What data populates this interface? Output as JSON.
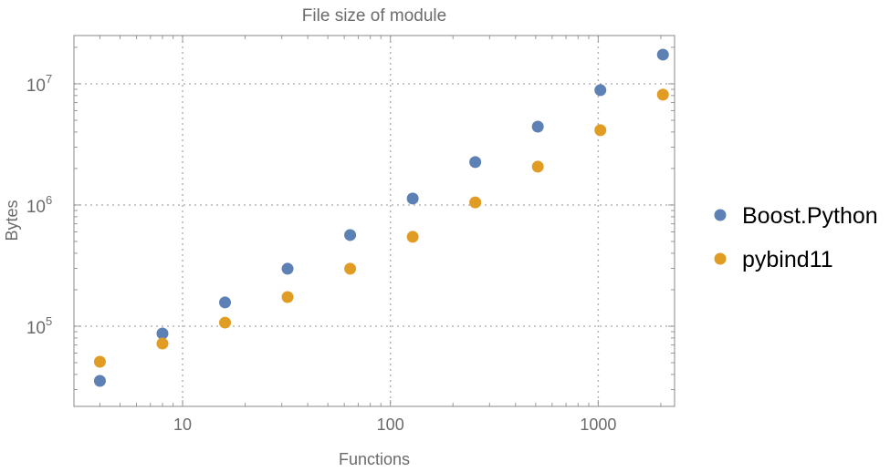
{
  "chart_data": {
    "type": "scatter",
    "title": "File size of module",
    "xlabel": "Functions",
    "ylabel": "Bytes",
    "xscale": "log",
    "yscale": "log",
    "xlim": [
      3,
      2330
    ],
    "ylim": [
      21800,
      25000000
    ],
    "grid": true,
    "legend_position": "right",
    "x_ticks": [
      {
        "value": 10,
        "label": "10"
      },
      {
        "value": 100,
        "label": "100"
      },
      {
        "value": 1000,
        "label": "1000"
      }
    ],
    "y_ticks": [
      {
        "value": 100000,
        "base": "10",
        "exp": "5"
      },
      {
        "value": 1000000,
        "base": "10",
        "exp": "6"
      },
      {
        "value": 10000000,
        "base": "10",
        "exp": "7"
      }
    ],
    "x": [
      4,
      8,
      16,
      32,
      64,
      128,
      256,
      512,
      1024,
      2048
    ],
    "series": [
      {
        "name": "Boost.Python",
        "color": "#5E81B5",
        "values": [
          35400,
          87100,
          157000,
          298000,
          565000,
          1130000,
          2260000,
          4430000,
          8860000,
          17400000
        ]
      },
      {
        "name": "pybind11",
        "color": "#E19C24",
        "values": [
          50900,
          71900,
          107000,
          174000,
          298000,
          546000,
          1050000,
          2070000,
          4140000,
          8130000
        ]
      }
    ]
  }
}
